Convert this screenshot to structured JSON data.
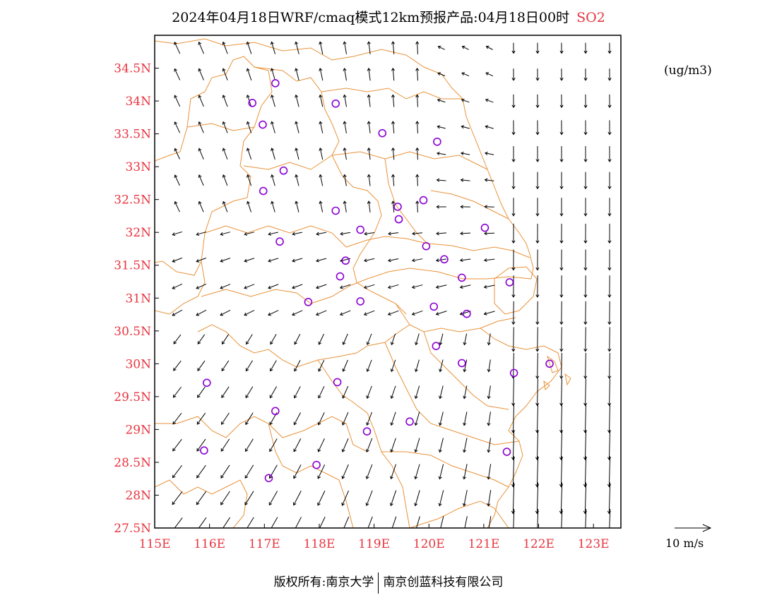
{
  "title": {
    "main": "2024年04月18日WRF/cmaq模式12km预报产品:04月18日00时",
    "species": "SO2"
  },
  "unit_label": "(ug/m3)",
  "wind_scale_label": "10 m/s",
  "copyright": {
    "left": "版权所有:南京大学",
    "right": "南京创蓝科技有限公司"
  },
  "colors": {
    "axis_label": "#e8343f",
    "boundary": "#e8923a",
    "station_marker": "#8a00d4",
    "wind_arrow": "#000000"
  },
  "map": {
    "lon_range": [
      115.0,
      123.5
    ],
    "lat_range": [
      27.5,
      35.0
    ],
    "lon_ticks": [
      "115E",
      "116E",
      "117E",
      "118E",
      "119E",
      "120E",
      "121E",
      "122E",
      "123E"
    ],
    "lat_ticks": [
      "27.5N",
      "28N",
      "28.5N",
      "29N",
      "29.5N",
      "30N",
      "30.5N",
      "31N",
      "31.5N",
      "32N",
      "32.5N",
      "33N",
      "33.5N",
      "34N",
      "34.5N"
    ],
    "stations": [
      {
        "lon": 117.2,
        "lat": 34.27
      },
      {
        "lon": 116.78,
        "lat": 33.97
      },
      {
        "lon": 118.3,
        "lat": 33.96
      },
      {
        "lon": 116.97,
        "lat": 33.64
      },
      {
        "lon": 119.15,
        "lat": 33.51
      },
      {
        "lon": 120.15,
        "lat": 33.38
      },
      {
        "lon": 117.35,
        "lat": 32.94
      },
      {
        "lon": 116.98,
        "lat": 32.63
      },
      {
        "lon": 119.9,
        "lat": 32.49
      },
      {
        "lon": 119.43,
        "lat": 32.39
      },
      {
        "lon": 118.3,
        "lat": 32.33
      },
      {
        "lon": 119.45,
        "lat": 32.2
      },
      {
        "lon": 118.75,
        "lat": 32.04
      },
      {
        "lon": 121.02,
        "lat": 32.07
      },
      {
        "lon": 117.28,
        "lat": 31.86
      },
      {
        "lon": 119.95,
        "lat": 31.79
      },
      {
        "lon": 118.48,
        "lat": 31.57
      },
      {
        "lon": 120.28,
        "lat": 31.59
      },
      {
        "lon": 118.38,
        "lat": 31.33
      },
      {
        "lon": 120.6,
        "lat": 31.31
      },
      {
        "lon": 121.47,
        "lat": 31.24
      },
      {
        "lon": 117.8,
        "lat": 30.94
      },
      {
        "lon": 118.75,
        "lat": 30.95
      },
      {
        "lon": 120.09,
        "lat": 30.87
      },
      {
        "lon": 120.69,
        "lat": 30.76
      },
      {
        "lon": 120.13,
        "lat": 30.27
      },
      {
        "lon": 120.6,
        "lat": 30.01
      },
      {
        "lon": 122.2,
        "lat": 30.0
      },
      {
        "lon": 121.55,
        "lat": 29.86
      },
      {
        "lon": 115.95,
        "lat": 29.71
      },
      {
        "lon": 118.33,
        "lat": 29.72
      },
      {
        "lon": 117.2,
        "lat": 29.28
      },
      {
        "lon": 119.65,
        "lat": 29.12
      },
      {
        "lon": 118.87,
        "lat": 28.97
      },
      {
        "lon": 115.9,
        "lat": 28.68
      },
      {
        "lon": 121.42,
        "lat": 28.66
      },
      {
        "lon": 117.95,
        "lat": 28.46
      },
      {
        "lon": 117.08,
        "lat": 28.26
      }
    ]
  }
}
